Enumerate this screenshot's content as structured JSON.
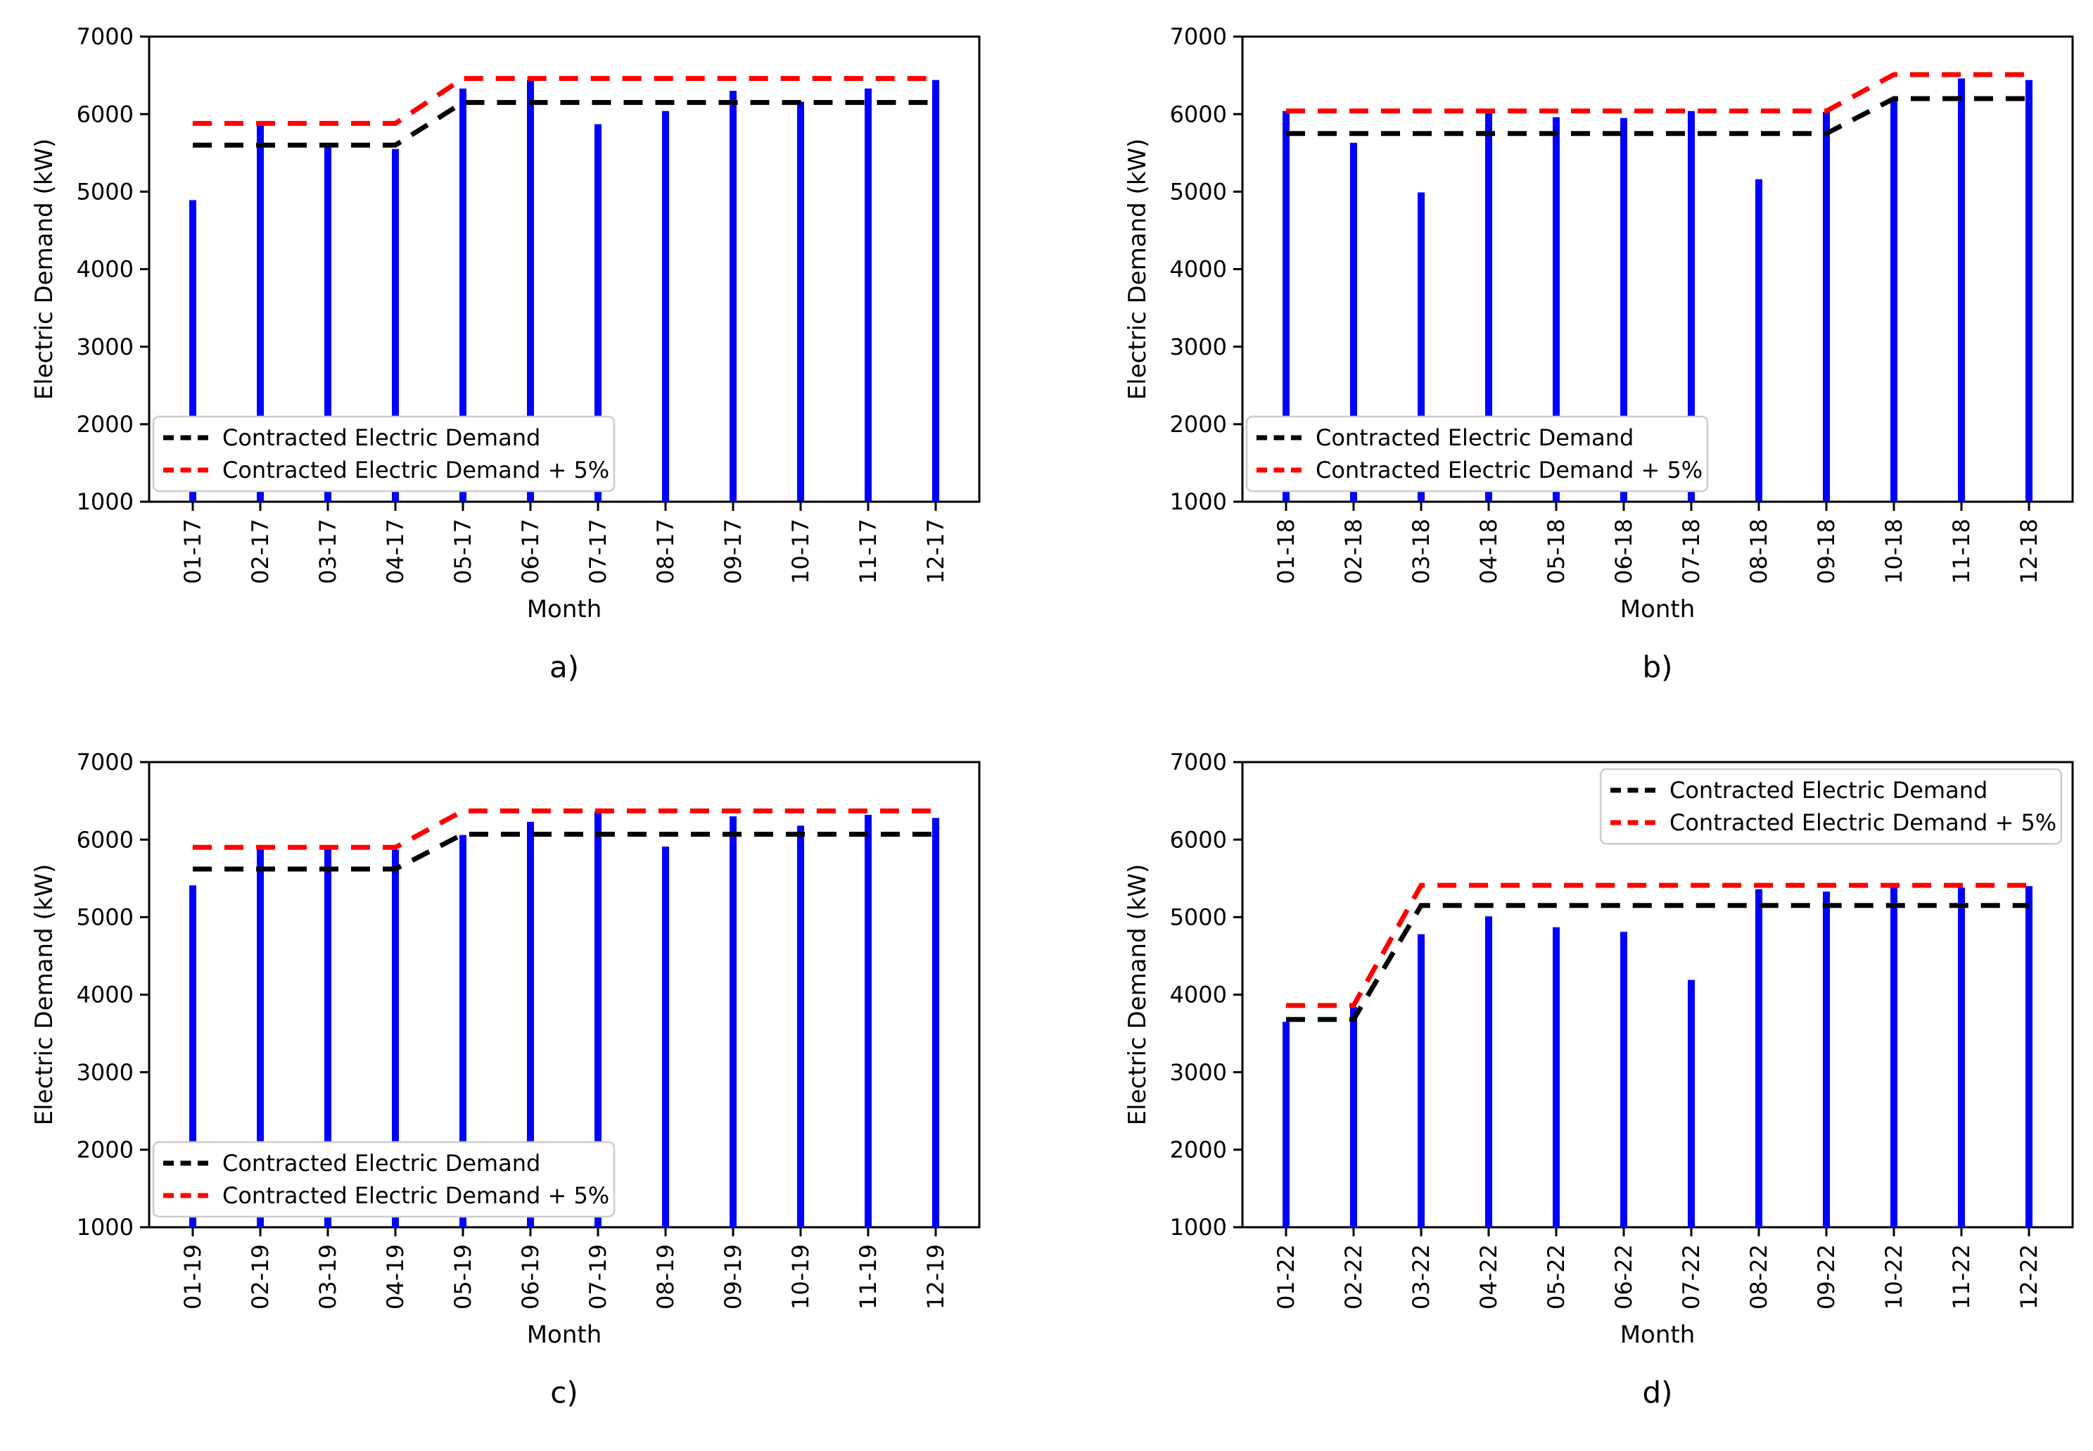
{
  "figure": {
    "background": "#ffffff",
    "ylabel": "Electric Demand (kW)",
    "xlabel": "Month",
    "ylim": [
      1000,
      7000
    ],
    "yticks": [
      1000,
      2000,
      3000,
      4000,
      5000,
      6000,
      7000
    ],
    "legend_labels": {
      "contracted": "Contracted Electric Demand",
      "contracted_plus5": "Contracted Electric Demand + 5%"
    },
    "colors": {
      "bars": "#0000ff",
      "contracted": "#000000",
      "contracted_plus5": "#ff0000",
      "legend_border": "#cccccc",
      "axis": "#000000"
    }
  },
  "chart_data": [
    {
      "id": "a",
      "caption": "a)",
      "type": "bar",
      "legend_position": "lower-left",
      "categories": [
        "01-17",
        "02-17",
        "03-17",
        "04-17",
        "05-17",
        "06-17",
        "07-17",
        "08-17",
        "09-17",
        "10-17",
        "11-17",
        "12-17"
      ],
      "bars": [
        4890,
        5870,
        5620,
        5550,
        6330,
        6440,
        5870,
        6040,
        6300,
        6160,
        6330,
        6440
      ],
      "contracted": [
        5600,
        5600,
        5600,
        5600,
        6150,
        6150,
        6150,
        6150,
        6150,
        6150,
        6150,
        6150
      ],
      "contracted_plus5": [
        5880,
        5880,
        5880,
        5880,
        6460,
        6460,
        6460,
        6460,
        6460,
        6460,
        6460,
        6460
      ]
    },
    {
      "id": "b",
      "caption": "b)",
      "type": "bar",
      "legend_position": "lower-left",
      "categories": [
        "01-18",
        "02-18",
        "03-18",
        "04-18",
        "05-18",
        "06-18",
        "07-18",
        "08-18",
        "09-18",
        "10-18",
        "11-18",
        "12-18"
      ],
      "bars": [
        6040,
        5630,
        4990,
        6020,
        5960,
        5950,
        6040,
        5160,
        6030,
        6210,
        6460,
        6440
      ],
      "contracted": [
        5750,
        5750,
        5750,
        5750,
        5750,
        5750,
        5750,
        5750,
        5750,
        6200,
        6200,
        6200
      ],
      "contracted_plus5": [
        6040,
        6040,
        6040,
        6040,
        6040,
        6040,
        6040,
        6040,
        6040,
        6510,
        6510,
        6510
      ]
    },
    {
      "id": "c",
      "caption": "c)",
      "type": "bar",
      "legend_position": "lower-left",
      "categories": [
        "01-19",
        "02-19",
        "03-19",
        "04-19",
        "05-19",
        "06-19",
        "07-19",
        "08-19",
        "09-19",
        "10-19",
        "11-19",
        "12-19"
      ],
      "bars": [
        5410,
        5880,
        5900,
        5870,
        6060,
        6230,
        6370,
        5910,
        6300,
        6180,
        6320,
        6280
      ],
      "contracted": [
        5620,
        5620,
        5620,
        5620,
        6070,
        6070,
        6070,
        6070,
        6070,
        6070,
        6070,
        6070
      ],
      "contracted_plus5": [
        5900,
        5900,
        5900,
        5900,
        6370,
        6370,
        6370,
        6370,
        6370,
        6370,
        6370,
        6370
      ]
    },
    {
      "id": "d",
      "caption": "d)",
      "type": "bar",
      "legend_position": "upper-right",
      "categories": [
        "01-22",
        "02-22",
        "03-22",
        "04-22",
        "05-22",
        "06-22",
        "07-22",
        "08-22",
        "09-22",
        "10-22",
        "11-22",
        "12-22"
      ],
      "bars": [
        3650,
        3840,
        4780,
        5010,
        4870,
        4810,
        4190,
        5360,
        5330,
        5400,
        5380,
        5400
      ],
      "contracted": [
        3680,
        3680,
        5150,
        5150,
        5150,
        5150,
        5150,
        5150,
        5150,
        5150,
        5150,
        5150
      ],
      "contracted_plus5": [
        3860,
        3860,
        5410,
        5410,
        5410,
        5410,
        5410,
        5410,
        5410,
        5410,
        5410,
        5410
      ]
    }
  ]
}
